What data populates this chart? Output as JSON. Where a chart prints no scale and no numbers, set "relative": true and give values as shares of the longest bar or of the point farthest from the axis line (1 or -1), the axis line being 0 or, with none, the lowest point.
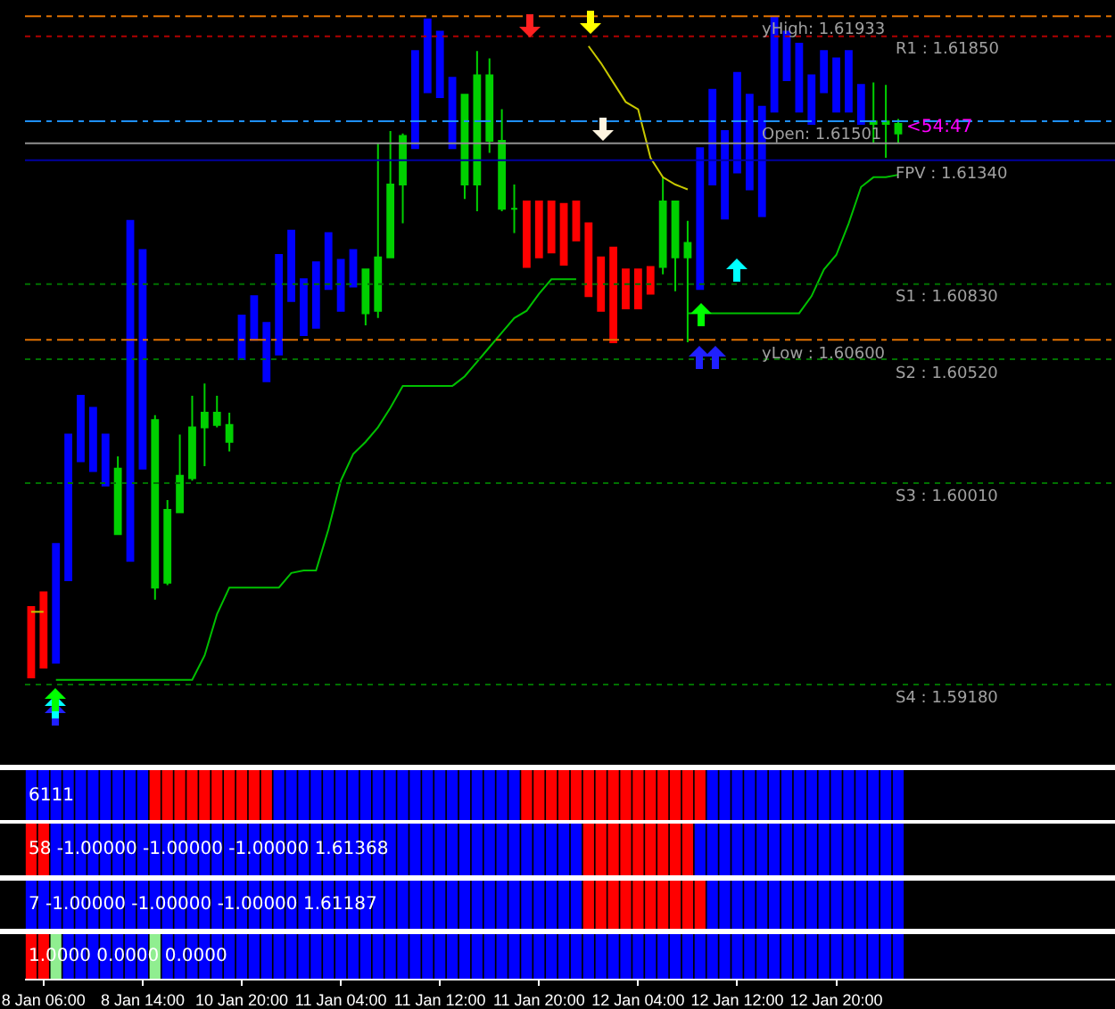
{
  "chart_data": [
    {
      "type": "candlestick",
      "categories": [
        null,
        null,
        null,
        null,
        null,
        null,
        null,
        null,
        null,
        null,
        null,
        null,
        null,
        null,
        null,
        null,
        null,
        null,
        null,
        null,
        null,
        null,
        null,
        null,
        null,
        null,
        null,
        null,
        null,
        null,
        null,
        null,
        null,
        null,
        null,
        null,
        null,
        null,
        null,
        null,
        null,
        null,
        null,
        null,
        null,
        null,
        null,
        null,
        null,
        null,
        null,
        null,
        null,
        null,
        null,
        null,
        null,
        null,
        null,
        null,
        null,
        null,
        null,
        null,
        null,
        null,
        null,
        null,
        null,
        null,
        null,
        null,
        null,
        null,
        null,
        null,
        null,
        null,
        null,
        null,
        null,
        null,
        null,
        null,
        null,
        null,
        null,
        null
      ],
      "ohlc": [
        [
          1.595,
          1.595,
          1.5921,
          1.5921
        ],
        [
          1.5956,
          1.5956,
          1.5925,
          1.5925
        ],
        [
          1.5927,
          1.5976,
          1.5927,
          1.5976
        ],
        [
          1.5961,
          1.6021,
          1.5961,
          1.6021
        ],
        [
          1.601,
          1.6037,
          1.601,
          1.6037
        ],
        [
          1.6006,
          1.6032,
          1.6006,
          1.6032
        ],
        [
          1.6,
          1.6021,
          1.6,
          1.6021
        ],
        [
          1.6007,
          1.6012,
          1.598,
          1.598
        ],
        [
          1.5969,
          1.6109,
          1.5969,
          1.6109
        ],
        [
          1.6007,
          1.6097,
          1.6007,
          1.6097
        ],
        [
          1.6027,
          1.6029,
          1.5953,
          1.5958
        ],
        [
          1.596,
          1.5994,
          1.5959,
          1.599
        ],
        [
          1.5989,
          1.6021,
          1.5989,
          1.6004
        ],
        [
          1.6003,
          1.6037,
          1.6002,
          1.6024
        ],
        [
          1.6024,
          1.6042,
          1.6008,
          1.603
        ],
        [
          1.603,
          1.6037,
          1.6024,
          1.6025
        ],
        [
          1.6025,
          1.603,
          1.6014,
          1.6018
        ],
        [
          1.6052,
          1.607,
          1.6052,
          1.607
        ],
        [
          1.606,
          1.6078,
          1.606,
          1.6078
        ],
        [
          1.6043,
          1.6067,
          1.6043,
          1.6067
        ],
        [
          1.6054,
          1.6095,
          1.6054,
          1.6095
        ],
        [
          1.6076,
          1.6105,
          1.6076,
          1.6105
        ],
        [
          1.6062,
          1.6085,
          1.6062,
          1.6085
        ],
        [
          1.6065,
          1.6092,
          1.6065,
          1.6092
        ],
        [
          1.6081,
          1.6104,
          1.6081,
          1.6104
        ],
        [
          1.6072,
          1.6093,
          1.6072,
          1.6093
        ],
        [
          1.6082,
          1.6097,
          1.6082,
          1.6097
        ],
        [
          1.6071,
          1.6089,
          1.6066,
          1.6089
        ],
        [
          1.6072,
          1.6141,
          1.6069,
          1.6094
        ],
        [
          1.6094,
          1.6146,
          1.6094,
          1.6124
        ],
        [
          1.6124,
          1.6145,
          1.6108,
          1.6144
        ],
        [
          1.6139,
          1.6179,
          1.6139,
          1.6179
        ],
        [
          1.6162,
          1.6192,
          1.6162,
          1.6192
        ],
        [
          1.616,
          1.6187,
          1.616,
          1.6187
        ],
        [
          1.6139,
          1.6168,
          1.6139,
          1.6168
        ],
        [
          1.6161,
          1.6161,
          1.6118,
          1.6124
        ],
        [
          1.6124,
          1.6179,
          1.6113,
          1.6169
        ],
        [
          1.6169,
          1.6176,
          1.6137,
          1.6142
        ],
        [
          1.6142,
          1.6155,
          1.6113,
          1.6114
        ],
        [
          1.6114,
          1.6124,
          1.6104,
          1.6114
        ],
        [
          1.6117,
          1.6117,
          1.609,
          1.609
        ],
        [
          1.6117,
          1.6117,
          1.6094,
          1.6094
        ],
        [
          1.6117,
          1.6117,
          1.6096,
          1.6096
        ],
        [
          1.6116,
          1.6116,
          1.6091,
          1.6091
        ],
        [
          1.6117,
          1.6117,
          1.6101,
          1.6101
        ],
        [
          1.6108,
          1.6108,
          1.6078,
          1.6078
        ],
        [
          1.6094,
          1.6094,
          1.6072,
          1.6072
        ],
        [
          1.6098,
          1.6098,
          1.6059,
          1.6059
        ],
        [
          1.6089,
          1.6089,
          1.6073,
          1.6073
        ],
        [
          1.6089,
          1.6089,
          1.6073,
          1.6073
        ],
        [
          1.609,
          1.609,
          1.6079,
          1.6079
        ],
        [
          1.609,
          1.6127,
          1.6087,
          1.6117
        ],
        [
          1.6117,
          1.6117,
          1.608,
          1.6094
        ],
        [
          1.6094,
          1.6109,
          1.6059,
          1.61
        ],
        [
          1.6081,
          1.6139,
          1.6081,
          1.6139
        ],
        [
          1.6124,
          1.6163,
          1.6124,
          1.6163
        ],
        [
          1.611,
          1.6146,
          1.611,
          1.6146
        ],
        [
          1.6129,
          1.617,
          1.6129,
          1.617
        ],
        [
          1.6122,
          1.6161,
          1.6122,
          1.6161
        ],
        [
          1.6111,
          1.6156,
          1.6111,
          1.6156
        ],
        [
          1.6154,
          1.6193,
          1.6154,
          1.6193
        ],
        [
          1.6167,
          1.6187,
          1.6167,
          1.6187
        ],
        [
          1.6154,
          1.6182,
          1.6154,
          1.6182
        ],
        [
          1.6149,
          1.6169,
          1.6149,
          1.6169
        ],
        [
          1.6162,
          1.6179,
          1.6162,
          1.6179
        ],
        [
          1.6154,
          1.6176,
          1.6154,
          1.6176
        ],
        [
          1.6154,
          1.6179,
          1.6154,
          1.6179
        ],
        [
          1.6149,
          1.6165,
          1.6149,
          1.6165
        ],
        [
          1.6149,
          1.6166,
          1.6141,
          1.615
        ],
        [
          1.615,
          1.6165,
          1.6135,
          1.6149
        ],
        [
          1.6149,
          1.6151,
          1.6141,
          1.6145
        ],
        null,
        null,
        null,
        null,
        null,
        null,
        null,
        null,
        null,
        null,
        null,
        null,
        null,
        null,
        null,
        null,
        null
      ],
      "colors": [
        "#ff0000",
        "#ff0000",
        "#0000ff",
        "#0000ff",
        "#0000ff",
        "#0000ff",
        "#0000ff",
        "#00d000",
        "#0000ff",
        "#0000ff",
        "#00d000",
        "#00d000",
        "#00d000",
        "#00d000",
        "#00d000",
        "#00d000",
        "#00d000",
        "#0000ff",
        "#0000ff",
        "#0000ff",
        "#0000ff",
        "#0000ff",
        "#0000ff",
        "#0000ff",
        "#0000ff",
        "#0000ff",
        "#0000ff",
        "#00d000",
        "#00d000",
        "#00d000",
        "#00d000",
        "#0000ff",
        "#0000ff",
        "#0000ff",
        "#0000ff",
        "#00d000",
        "#00d000",
        "#00d000",
        "#00d000",
        "#00d000",
        "#ff0000",
        "#ff0000",
        "#ff0000",
        "#ff0000",
        "#ff0000",
        "#ff0000",
        "#ff0000",
        "#ff0000",
        "#ff0000",
        "#ff0000",
        "#ff0000",
        "#00d000",
        "#00d000",
        "#00d000",
        "#0000ff",
        "#0000ff",
        "#0000ff",
        "#0000ff",
        "#0000ff",
        "#0000ff",
        "#0000ff",
        "#0000ff",
        "#0000ff",
        "#0000ff",
        "#0000ff",
        "#0000ff",
        "#0000ff",
        "#0000ff",
        "#00d000",
        "#00d000",
        "#00d000",
        null,
        null,
        null,
        null,
        null,
        null,
        null,
        null,
        null,
        null,
        null,
        null,
        null,
        null,
        null,
        null,
        null
      ],
      "series": [
        {
          "type": "line",
          "color": "#00c000",
          "values": [
            null,
            null,
            1.592,
            1.592,
            1.592,
            1.592,
            1.592,
            1.592,
            1.592,
            1.592,
            1.592,
            1.592,
            1.592,
            1.592,
            1.593,
            1.5947,
            1.5958,
            1.5958,
            1.5958,
            1.5958,
            1.5958,
            1.5964,
            1.5965,
            1.5965,
            1.5982,
            1.6002,
            1.6013,
            1.6018,
            1.6024,
            1.6032,
            1.6041,
            1.6041,
            1.6041,
            1.6041,
            1.6041,
            1.6045,
            1.6051,
            1.6057,
            1.6063,
            1.6069,
            1.6072,
            1.6079,
            1.6085,
            1.6085,
            1.6085,
            null,
            null,
            null,
            null,
            null,
            null,
            null,
            null,
            1.6071,
            1.6071,
            1.6071,
            1.6071,
            1.6071,
            1.6071,
            1.6071,
            1.6071,
            1.6071,
            1.6071,
            1.6078,
            1.6089,
            1.6095,
            1.6108,
            1.6123,
            1.6127,
            1.6127,
            1.6128,
            null,
            null,
            null,
            null,
            null,
            null,
            null,
            null,
            null,
            null,
            null,
            null,
            null,
            null,
            null,
            null,
            null
          ]
        },
        {
          "type": "line",
          "color": "#c8c800",
          "values": [
            1.5948,
            1.5948,
            null,
            null,
            null,
            null,
            null,
            null,
            null,
            null,
            null,
            null,
            null,
            null,
            null,
            null,
            null,
            null,
            null,
            null,
            null,
            null,
            null,
            null,
            null,
            null,
            null,
            null,
            null,
            null,
            null,
            null,
            null,
            null,
            null,
            null,
            null,
            null,
            null,
            null,
            null,
            null,
            null,
            null,
            null,
            1.6181,
            1.6174,
            1.6166,
            1.6158,
            1.6155,
            1.6135,
            1.6127,
            1.6124,
            1.6122,
            null,
            null,
            null,
            null,
            null,
            null,
            null,
            null,
            null,
            null,
            null,
            null,
            null,
            null,
            null,
            null,
            null,
            null,
            null,
            null,
            null,
            null,
            null,
            null,
            null,
            null,
            null,
            null,
            null,
            null,
            null,
            null,
            null,
            null
          ]
        }
      ],
      "ylim": [
        1.5885,
        1.62
      ],
      "ref_lines": [
        {
          "axis": "y",
          "value": 1.61933,
          "label": "yHigh: 1.61933",
          "color": "#e07000",
          "line_style": "dashed"
        },
        {
          "axis": "y",
          "value": 1.6185,
          "label": "R1 : 1.61850",
          "color": "#b00000",
          "line_style": "dotted"
        },
        {
          "axis": "y",
          "value": 1.61501,
          "label": "Open: 1.61501",
          "color": "#1e90ff",
          "line_style": "dashed"
        },
        {
          "axis": "y",
          "value": 1.6141,
          "color": "#909090",
          "line_style": "solid"
        },
        {
          "axis": "y",
          "value": 1.6134,
          "label": "FPV : 1.61340",
          "color": "#0000a0",
          "line_style": "solid"
        },
        {
          "axis": "y",
          "value": 1.6083,
          "label": "S1 : 1.60830",
          "color": "#007000",
          "line_style": "dotted"
        },
        {
          "axis": "y",
          "value": 1.606,
          "label": "yLow : 1.60600",
          "color": "#e07000",
          "line_style": "dashed"
        },
        {
          "axis": "y",
          "value": 1.6052,
          "label": "S2 : 1.60520",
          "color": "#007000",
          "line_style": "dotted"
        },
        {
          "axis": "y",
          "value": 1.6001,
          "label": "S3 : 1.60010",
          "color": "#007000",
          "line_style": "dotted"
        },
        {
          "axis": "y",
          "value": 1.5918,
          "label": "S4 : 1.59180",
          "color": "#007000",
          "line_style": "dotted"
        }
      ],
      "annotations": [
        {
          "text": "<54:47",
          "y": 1.6141
        }
      ],
      "tick_labels": false
    },
    {
      "type": "bar",
      "relative": true,
      "tick_labels": false,
      "categories": [
        null,
        null,
        null,
        null,
        null,
        null,
        null,
        null,
        null,
        null,
        null,
        null,
        null,
        null,
        null,
        null,
        null,
        null,
        null,
        null,
        null,
        null,
        null,
        null,
        null,
        null,
        null,
        null,
        null,
        null,
        null,
        null,
        null,
        null,
        null,
        null,
        null,
        null,
        null,
        null,
        null,
        null,
        null,
        null,
        null,
        null,
        null,
        null,
        null,
        null,
        null,
        null,
        null,
        null,
        null,
        null,
        null,
        null,
        null,
        null,
        null,
        null,
        null,
        null,
        null,
        null,
        null,
        null,
        null,
        null,
        null,
        null,
        null,
        null,
        null,
        null,
        null,
        null,
        null,
        null,
        null,
        null,
        null,
        null,
        null,
        null,
        null,
        null
      ],
      "values": [
        1,
        1,
        1,
        1,
        1,
        1,
        1,
        1,
        1,
        1,
        1,
        1,
        1,
        1,
        1,
        1,
        1,
        1,
        1,
        1,
        1,
        1,
        1,
        1,
        1,
        1,
        1,
        1,
        1,
        1,
        1,
        1,
        1,
        1,
        1,
        1,
        1,
        1,
        1,
        1,
        1,
        1,
        1,
        1,
        1,
        1,
        1,
        1,
        1,
        1,
        1,
        1,
        1,
        1,
        1,
        1,
        1,
        1,
        1,
        1,
        1,
        1,
        1,
        1,
        1,
        1,
        1,
        1,
        1,
        1,
        1,
        null,
        null,
        null,
        null,
        null,
        null,
        null,
        null,
        null,
        null,
        null,
        null,
        null,
        null,
        null,
        null,
        null
      ],
      "colors": [
        "#0000ff",
        "#0000ff",
        "#0000ff",
        "#0000ff",
        "#0000ff",
        "#0000ff",
        "#0000ff",
        "#0000ff",
        "#0000ff",
        "#0000ff",
        "#ff0000",
        "#ff0000",
        "#ff0000",
        "#ff0000",
        "#ff0000",
        "#ff0000",
        "#ff0000",
        "#ff0000",
        "#ff0000",
        "#ff0000",
        "#0000ff",
        "#0000ff",
        "#0000ff",
        "#0000ff",
        "#0000ff",
        "#0000ff",
        "#0000ff",
        "#0000ff",
        "#0000ff",
        "#0000ff",
        "#0000ff",
        "#0000ff",
        "#0000ff",
        "#0000ff",
        "#0000ff",
        "#0000ff",
        "#0000ff",
        "#0000ff",
        "#0000ff",
        "#0000ff",
        "#ff0000",
        "#ff0000",
        "#ff0000",
        "#ff0000",
        "#ff0000",
        "#ff0000",
        "#ff0000",
        "#ff0000",
        "#ff0000",
        "#ff0000",
        "#ff0000",
        "#ff0000",
        "#ff0000",
        "#ff0000",
        "#ff0000",
        "#0000ff",
        "#0000ff",
        "#0000ff",
        "#0000ff",
        "#0000ff",
        "#0000ff",
        "#0000ff",
        "#0000ff",
        "#0000ff",
        "#0000ff",
        "#0000ff",
        "#0000ff",
        "#0000ff",
        "#0000ff",
        "#0000ff",
        "#0000ff",
        null,
        null,
        null,
        null,
        null,
        null,
        null,
        null,
        null,
        null,
        null,
        null,
        null,
        null,
        null,
        null,
        null
      ],
      "annotations": [
        "6111"
      ]
    },
    {
      "type": "bar",
      "relative": true,
      "tick_labels": false,
      "categories": [
        null,
        null,
        null,
        null,
        null,
        null,
        null,
        null,
        null,
        null,
        null,
        null,
        null,
        null,
        null,
        null,
        null,
        null,
        null,
        null,
        null,
        null,
        null,
        null,
        null,
        null,
        null,
        null,
        null,
        null,
        null,
        null,
        null,
        null,
        null,
        null,
        null,
        null,
        null,
        null,
        null,
        null,
        null,
        null,
        null,
        null,
        null,
        null,
        null,
        null,
        null,
        null,
        null,
        null,
        null,
        null,
        null,
        null,
        null,
        null,
        null,
        null,
        null,
        null,
        null,
        null,
        null,
        null,
        null,
        null,
        null,
        null,
        null,
        null,
        null,
        null,
        null,
        null,
        null,
        null,
        null,
        null,
        null,
        null,
        null,
        null,
        null,
        null
      ],
      "values": [
        1,
        1,
        1,
        1,
        1,
        1,
        1,
        1,
        1,
        1,
        1,
        1,
        1,
        1,
        1,
        1,
        1,
        1,
        1,
        1,
        1,
        1,
        1,
        1,
        1,
        1,
        1,
        1,
        1,
        1,
        1,
        1,
        1,
        1,
        1,
        1,
        1,
        1,
        1,
        1,
        1,
        1,
        1,
        1,
        1,
        1,
        1,
        1,
        1,
        1,
        1,
        1,
        1,
        1,
        1,
        1,
        1,
        1,
        1,
        1,
        1,
        1,
        1,
        1,
        1,
        1,
        1,
        1,
        1,
        1,
        1,
        null,
        null,
        null,
        null,
        null,
        null,
        null,
        null,
        null,
        null,
        null,
        null,
        null,
        null,
        null,
        null,
        null
      ],
      "colors": [
        "#ff0000",
        "#ff0000",
        "#0000ff",
        "#0000ff",
        "#0000ff",
        "#0000ff",
        "#0000ff",
        "#0000ff",
        "#0000ff",
        "#0000ff",
        "#0000ff",
        "#0000ff",
        "#0000ff",
        "#0000ff",
        "#0000ff",
        "#0000ff",
        "#0000ff",
        "#0000ff",
        "#0000ff",
        "#0000ff",
        "#0000ff",
        "#0000ff",
        "#0000ff",
        "#0000ff",
        "#0000ff",
        "#0000ff",
        "#0000ff",
        "#0000ff",
        "#0000ff",
        "#0000ff",
        "#0000ff",
        "#0000ff",
        "#0000ff",
        "#0000ff",
        "#0000ff",
        "#0000ff",
        "#0000ff",
        "#0000ff",
        "#0000ff",
        "#0000ff",
        "#0000ff",
        "#0000ff",
        "#0000ff",
        "#0000ff",
        "#0000ff",
        "#ff0000",
        "#ff0000",
        "#ff0000",
        "#ff0000",
        "#ff0000",
        "#ff0000",
        "#ff0000",
        "#ff0000",
        "#ff0000",
        "#0000ff",
        "#0000ff",
        "#0000ff",
        "#0000ff",
        "#0000ff",
        "#0000ff",
        "#0000ff",
        "#0000ff",
        "#0000ff",
        "#0000ff",
        "#0000ff",
        "#0000ff",
        "#0000ff",
        "#0000ff",
        "#0000ff",
        "#0000ff",
        "#0000ff",
        null,
        null,
        null,
        null,
        null,
        null,
        null,
        null,
        null,
        null,
        null,
        null,
        null,
        null,
        null,
        null,
        null
      ],
      "annotations": [
        "58 -1.00000 -1.00000 -1.00000 1.61368"
      ]
    },
    {
      "type": "bar",
      "relative": true,
      "tick_labels": false,
      "categories": [
        null,
        null,
        null,
        null,
        null,
        null,
        null,
        null,
        null,
        null,
        null,
        null,
        null,
        null,
        null,
        null,
        null,
        null,
        null,
        null,
        null,
        null,
        null,
        null,
        null,
        null,
        null,
        null,
        null,
        null,
        null,
        null,
        null,
        null,
        null,
        null,
        null,
        null,
        null,
        null,
        null,
        null,
        null,
        null,
        null,
        null,
        null,
        null,
        null,
        null,
        null,
        null,
        null,
        null,
        null,
        null,
        null,
        null,
        null,
        null,
        null,
        null,
        null,
        null,
        null,
        null,
        null,
        null,
        null,
        null,
        null,
        null,
        null,
        null,
        null,
        null,
        null,
        null,
        null,
        null,
        null,
        null,
        null,
        null,
        null,
        null,
        null,
        null
      ],
      "values": [
        1,
        1,
        1,
        1,
        1,
        1,
        1,
        1,
        1,
        1,
        1,
        1,
        1,
        1,
        1,
        1,
        1,
        1,
        1,
        1,
        1,
        1,
        1,
        1,
        1,
        1,
        1,
        1,
        1,
        1,
        1,
        1,
        1,
        1,
        1,
        1,
        1,
        1,
        1,
        1,
        1,
        1,
        1,
        1,
        1,
        1,
        1,
        1,
        1,
        1,
        1,
        1,
        1,
        1,
        1,
        1,
        1,
        1,
        1,
        1,
        1,
        1,
        1,
        1,
        1,
        1,
        1,
        1,
        1,
        1,
        1,
        null,
        null,
        null,
        null,
        null,
        null,
        null,
        null,
        null,
        null,
        null,
        null,
        null,
        null,
        null,
        null,
        null
      ],
      "colors": [
        "#0000ff",
        "#0000ff",
        "#0000ff",
        "#0000ff",
        "#0000ff",
        "#0000ff",
        "#0000ff",
        "#0000ff",
        "#0000ff",
        "#0000ff",
        "#0000ff",
        "#0000ff",
        "#0000ff",
        "#0000ff",
        "#0000ff",
        "#0000ff",
        "#0000ff",
        "#0000ff",
        "#0000ff",
        "#0000ff",
        "#0000ff",
        "#0000ff",
        "#0000ff",
        "#0000ff",
        "#0000ff",
        "#0000ff",
        "#0000ff",
        "#0000ff",
        "#0000ff",
        "#0000ff",
        "#0000ff",
        "#0000ff",
        "#0000ff",
        "#0000ff",
        "#0000ff",
        "#0000ff",
        "#0000ff",
        "#0000ff",
        "#0000ff",
        "#0000ff",
        "#0000ff",
        "#0000ff",
        "#0000ff",
        "#0000ff",
        "#0000ff",
        "#ff0000",
        "#ff0000",
        "#ff0000",
        "#ff0000",
        "#ff0000",
        "#ff0000",
        "#ff0000",
        "#ff0000",
        "#ff0000",
        "#ff0000",
        "#0000ff",
        "#0000ff",
        "#0000ff",
        "#0000ff",
        "#0000ff",
        "#0000ff",
        "#0000ff",
        "#0000ff",
        "#0000ff",
        "#0000ff",
        "#0000ff",
        "#0000ff",
        "#0000ff",
        "#0000ff",
        "#0000ff",
        "#0000ff",
        null,
        null,
        null,
        null,
        null,
        null,
        null,
        null,
        null,
        null,
        null,
        null,
        null,
        null,
        null,
        null,
        null
      ],
      "annotations": [
        "7 -1.00000 -1.00000 -1.00000 1.61187"
      ]
    },
    {
      "type": "bar",
      "relative": true,
      "categories": [
        null,
        "8 Jan 06:00",
        null,
        null,
        null,
        null,
        null,
        null,
        null,
        "8 Jan 14:00",
        null,
        null,
        null,
        null,
        null,
        null,
        null,
        "10 Jan 20:00",
        null,
        null,
        null,
        null,
        null,
        null,
        null,
        "11 Jan 04:00",
        null,
        null,
        null,
        null,
        null,
        null,
        null,
        "11 Jan 12:00",
        null,
        null,
        null,
        null,
        null,
        null,
        null,
        "11 Jan 20:00",
        null,
        null,
        null,
        null,
        null,
        null,
        null,
        "12 Jan 04:00",
        null,
        null,
        null,
        null,
        null,
        null,
        null,
        "12 Jan 12:00",
        null,
        null,
        null,
        null,
        null,
        null,
        null,
        "12 Jan 20:00",
        null,
        null,
        null,
        null,
        null,
        null,
        null,
        null,
        null,
        null,
        null,
        null,
        null,
        null,
        null,
        null,
        null,
        null,
        null,
        null,
        null,
        null
      ],
      "values": [
        1,
        1,
        1,
        1,
        1,
        1,
        1,
        1,
        1,
        1,
        1,
        1,
        1,
        1,
        1,
        1,
        1,
        1,
        1,
        1,
        1,
        1,
        1,
        1,
        1,
        1,
        1,
        1,
        1,
        1,
        1,
        1,
        1,
        1,
        1,
        1,
        1,
        1,
        1,
        1,
        1,
        1,
        1,
        1,
        1,
        1,
        1,
        1,
        1,
        1,
        1,
        1,
        1,
        1,
        1,
        1,
        1,
        1,
        1,
        1,
        1,
        1,
        1,
        1,
        1,
        1,
        1,
        1,
        1,
        1,
        1,
        null,
        null,
        null,
        null,
        null,
        null,
        null,
        null,
        null,
        null,
        null,
        null,
        null,
        null,
        null,
        null,
        null
      ],
      "colors": [
        "#ff0000",
        "#ff0000",
        "#90ee90",
        "#0000ff",
        "#0000ff",
        "#0000ff",
        "#0000ff",
        "#0000ff",
        "#0000ff",
        "#0000ff",
        "#90ee90",
        "#0000ff",
        "#0000ff",
        "#0000ff",
        "#0000ff",
        "#0000ff",
        "#0000ff",
        "#0000ff",
        "#0000ff",
        "#0000ff",
        "#0000ff",
        "#0000ff",
        "#0000ff",
        "#0000ff",
        "#0000ff",
        "#0000ff",
        "#0000ff",
        "#0000ff",
        "#0000ff",
        "#0000ff",
        "#0000ff",
        "#0000ff",
        "#0000ff",
        "#0000ff",
        "#0000ff",
        "#0000ff",
        "#0000ff",
        "#0000ff",
        "#0000ff",
        "#0000ff",
        "#0000ff",
        "#0000ff",
        "#0000ff",
        "#0000ff",
        "#0000ff",
        "#0000ff",
        "#0000ff",
        "#0000ff",
        "#0000ff",
        "#0000ff",
        "#0000ff",
        "#0000ff",
        "#0000ff",
        "#0000ff",
        "#0000ff",
        "#0000ff",
        "#0000ff",
        "#0000ff",
        "#0000ff",
        "#0000ff",
        "#0000ff",
        "#0000ff",
        "#0000ff",
        "#0000ff",
        "#0000ff",
        "#0000ff",
        "#0000ff",
        "#0000ff",
        "#0000ff",
        "#0000ff",
        "#0000ff",
        null,
        null,
        null,
        null,
        null,
        null,
        null,
        null,
        null,
        null,
        null,
        null,
        null,
        null,
        null,
        null,
        null
      ],
      "annotations": [
        "1.0000 0.0000 0.0000"
      ]
    }
  ]
}
